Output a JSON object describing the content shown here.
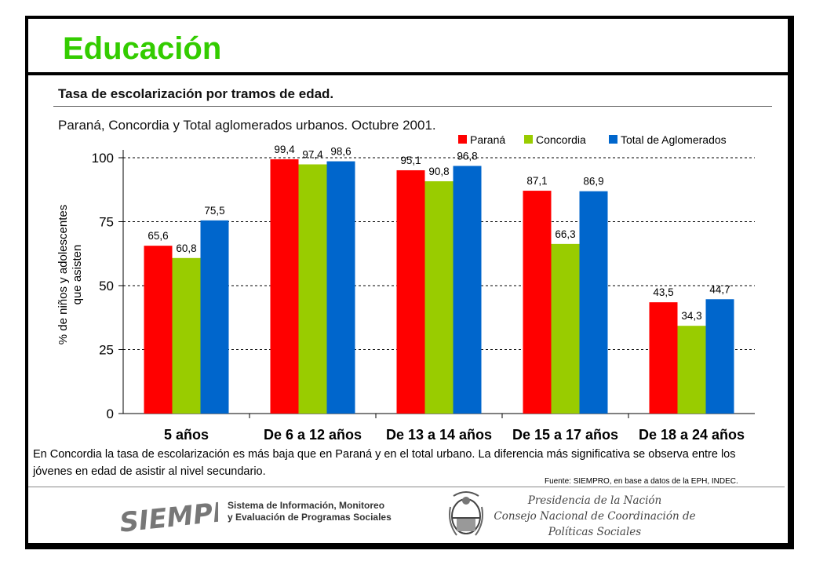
{
  "header": {
    "title": "Educación",
    "subtitle": "Tasa de escolarización por tramos de edad.",
    "subtitle2": "Paraná, Concordia y Total aglomerados urbanos. Octubre 2001."
  },
  "chart_data": {
    "type": "bar",
    "title": "Tasa de escolarización por tramos de edad.",
    "subtitle": "Paraná, Concordia y Total aglomerados urbanos. Octubre 2001.",
    "xlabel": "",
    "ylabel": "% de niños y adolescentes que asisten",
    "ylabel_lines": [
      "% de niños y adolescentes",
      "que asisten"
    ],
    "ylim": [
      0,
      100
    ],
    "yticks": [
      0,
      25,
      50,
      75,
      100
    ],
    "grid": true,
    "legend_position": "top-right",
    "categories": [
      "5 años",
      "De 6 a 12 años",
      "De 13 a 14 años",
      "De 15 a 17 años",
      "De 18 a 24 años"
    ],
    "series": [
      {
        "name": "Paraná",
        "color": "#ff0000",
        "values": [
          65.6,
          99.4,
          95.1,
          87.1,
          43.5
        ],
        "labels": [
          "65,6",
          "99,4",
          "95,1",
          "87,1",
          "43,5"
        ]
      },
      {
        "name": "Concordia",
        "color": "#99cc00",
        "values": [
          60.8,
          97.4,
          90.8,
          66.3,
          34.3
        ],
        "labels": [
          "60,8",
          "97,4",
          "90,8",
          "66,3",
          "34,3"
        ]
      },
      {
        "name": "Total de Aglomerados",
        "color": "#0066cc",
        "values": [
          75.5,
          98.6,
          96.8,
          86.9,
          44.7
        ],
        "labels": [
          "75,5",
          "98,6",
          "96,8",
          "86,9",
          "44,7"
        ]
      }
    ]
  },
  "note": "En Concordia la tasa de escolarización es más baja que en Paraná y en el  total urbano. La diferencia más significativa se observa entre los jóvenes en edad de asistir al nivel secundario.",
  "source": "Fuente: SIEMPRO, en base a datos de la EPH, INDEC.",
  "footer": {
    "logo_text": "SIEMPRO",
    "sistema_line1": "Sistema de Información, Monitoreo",
    "sistema_line2": "y Evaluación de Programas Sociales",
    "pres_line1": "Presidencia de la Nación",
    "pres_line2": "Consejo Nacional de Coordinación de",
    "pres_line3": "Políticas Sociales"
  },
  "colors": {
    "title": "#33cc00"
  }
}
